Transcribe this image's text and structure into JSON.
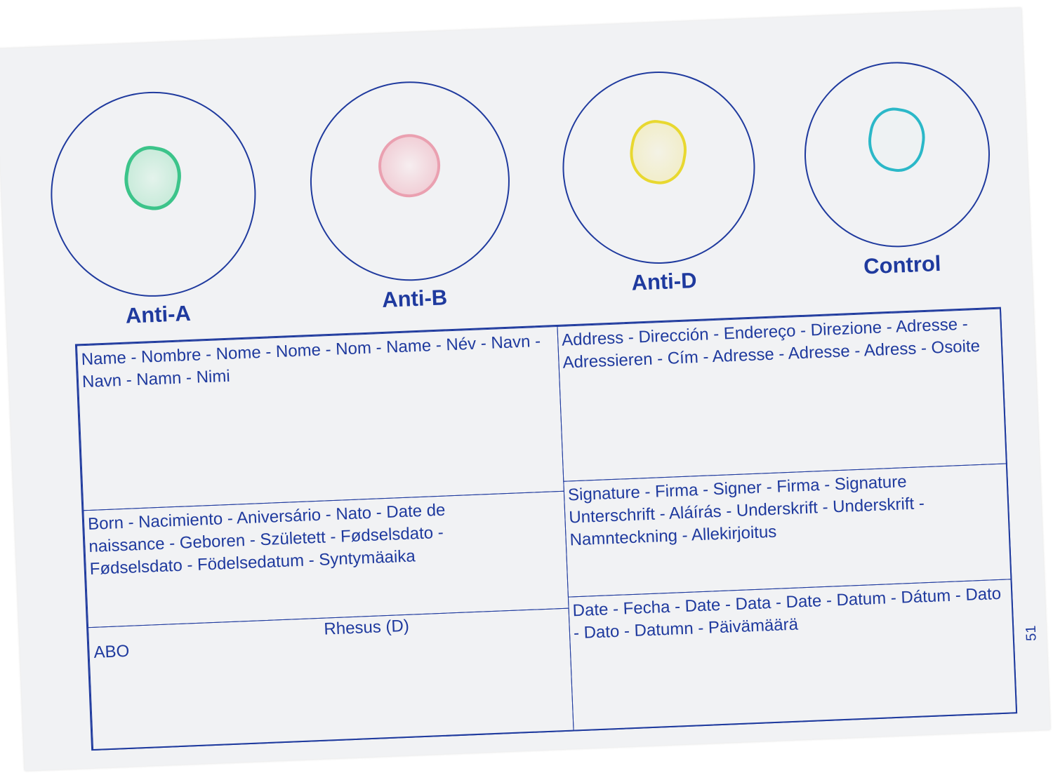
{
  "circles": [
    {
      "label": "Anti-A",
      "spot_color": "#3cc48a"
    },
    {
      "label": "Anti-B",
      "spot_color": "#e87a92"
    },
    {
      "label": "Anti-D",
      "spot_color": "#e8d830"
    },
    {
      "label": "Control",
      "spot_color": "#2bb8c8"
    }
  ],
  "fields": {
    "name": "Name - Nombre - Nome - Nome - Nom - Name - Név - Navn - Navn - Namn - Nimi",
    "address": "Address - Dirección - Endereço - Direzione - Adresse - Adressieren - Cím - Adresse - Adresse - Adress - Osoite",
    "born": "Born - Nacimiento - Aniversário - Nato - Date de naissance - Geboren - Született - Fødselsdato - Fødselsdato - Födelsedatum - Syntymäaika",
    "signature": "Signature - Firma - Signer - Firma - Signature Unterschrift - Aláírás - Underskrift - Underskrift - Namnteckning - Allekirjoitus",
    "abo": "ABO",
    "rhesus": "Rhesus (D)",
    "date": "Date - Fecha - Date - Data - Date - Datum - Dátum - Dato - Dato - Datumn - Päivämäärä"
  },
  "card_number": "51",
  "ink_color": "#1f3a9e"
}
